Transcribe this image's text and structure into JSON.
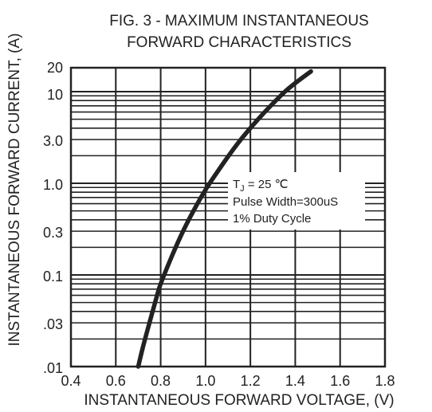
{
  "chart_data": {
    "type": "line",
    "title_line1": "FIG. 3 - MAXIMUM INSTANTANEOUS",
    "title_line2": "FORWARD CHARACTERISTICS",
    "xlabel": "INSTANTANEOUS FORWARD VOLTAGE, (V)",
    "ylabel": "INSTANTANEOUS FORWARD CURRENT, (A)",
    "xlim": [
      0.4,
      1.8
    ],
    "ylim": [
      0.01,
      20
    ],
    "y_scale": "log",
    "grid": true,
    "x_ticks": [
      0.4,
      0.6,
      0.8,
      1.0,
      1.2,
      1.4,
      1.6,
      1.8
    ],
    "x_tick_labels": [
      "0.4",
      "0.6",
      "0.8",
      "1.0",
      "1.2",
      "1.4",
      "1.6",
      "1.8"
    ],
    "y_ticks": [
      0.01,
      0.03,
      0.1,
      0.3,
      1.0,
      3.0,
      10,
      20
    ],
    "y_tick_labels": [
      ".01",
      ".03",
      "0.1",
      "0.3",
      "1.0",
      "3.0",
      "10",
      "20"
    ],
    "series": [
      {
        "x": [
          0.7,
          0.72,
          0.75,
          0.78,
          0.8,
          0.85,
          0.9,
          0.95,
          1.0,
          1.05,
          1.1,
          1.15,
          1.2,
          1.25,
          1.3,
          1.35,
          1.4,
          1.47
        ],
        "y": [
          0.01,
          0.016,
          0.03,
          0.055,
          0.08,
          0.16,
          0.3,
          0.52,
          0.85,
          1.3,
          1.95,
          2.85,
          4.0,
          5.5,
          7.4,
          9.8,
          12.8,
          18
        ]
      }
    ],
    "annotation": {
      "line1_main": "T",
      "line1_sub": "J",
      "line1_rest": " = 25 ℃",
      "line2": "Pulse Width=300uS",
      "line3": "1% Duty Cycle"
    }
  }
}
